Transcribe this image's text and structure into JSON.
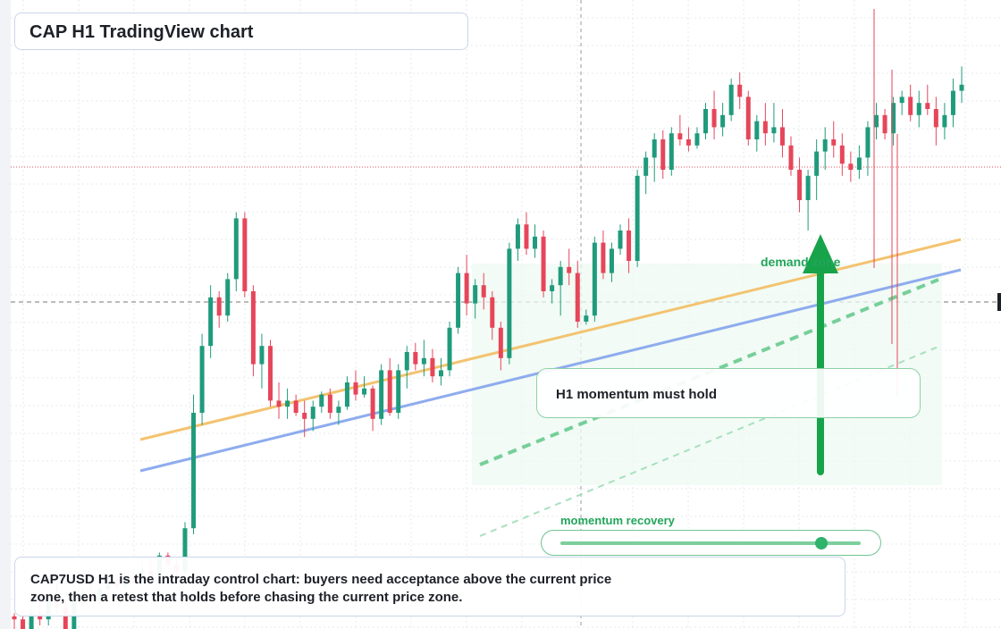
{
  "header": {
    "title": "CAP H1 TradingView chart"
  },
  "annotations": {
    "callout_text": "H1 momentum must hold",
    "demand_zone_label": "demand zone",
    "momentum_label": "momentum recovery",
    "momentum_level": 0.87,
    "description": "CAP7USD H1 is the intraday control chart: buyers need acceptance above the current price zone, then a retest that holds before chasing the current price zone."
  },
  "chart_data": {
    "type": "candlestick",
    "symbol": "CAP7USD",
    "timeframe": "H1",
    "title": "CAP H1 TradingView chart",
    "xlabel": "",
    "ylabel": "",
    "ylim": [
      0,
      100
    ],
    "grid": true,
    "candles": [
      [
        1.5,
        2.0,
        -1.0,
        1.0
      ],
      [
        1.0,
        2.5,
        -3.0,
        -2.0
      ],
      [
        -2.0,
        3.0,
        -3.0,
        2.0
      ],
      [
        2.0,
        3.5,
        0.0,
        1.0
      ],
      [
        1.0,
        5.0,
        0.0,
        4.0
      ],
      [
        4.0,
        7.0,
        2.0,
        3.0
      ],
      [
        3.0,
        4.0,
        -3.0,
        -1.0
      ],
      [
        -1.0,
        5.0,
        -1.5,
        4.0
      ],
      [
        4.0,
        6.0,
        3.0,
        5.0
      ],
      [
        5.0,
        6.5,
        4.0,
        4.0
      ],
      [
        4.0,
        7.0,
        3.5,
        6.0
      ],
      [
        6.0,
        8.0,
        5.0,
        7.0
      ],
      [
        7.0,
        8.5,
        6.0,
        6.5
      ],
      [
        6.5,
        9.0,
        6.0,
        8.0
      ],
      [
        8.0,
        9.5,
        6.5,
        7.0
      ],
      [
        7.0,
        10.5,
        6.5,
        9.0
      ],
      [
        9.0,
        11.0,
        7.0,
        8.0
      ],
      [
        8.0,
        12.0,
        7.5,
        11.5
      ],
      [
        11.5,
        12.0,
        9.5,
        10.0
      ],
      [
        10.0,
        11.0,
        8.0,
        9.0
      ],
      [
        9.0,
        17.0,
        8.5,
        16.0
      ],
      [
        16.0,
        38.0,
        15.0,
        35.0
      ],
      [
        35.0,
        48.0,
        33.0,
        46.0
      ],
      [
        46.0,
        56.0,
        44.0,
        54.0
      ],
      [
        54.0,
        55.0,
        49.0,
        51.0
      ],
      [
        51.0,
        58.0,
        50.0,
        57.0
      ],
      [
        57.0,
        68.0,
        55.0,
        67.0
      ],
      [
        67.0,
        68.0,
        54.0,
        55.0
      ],
      [
        55.0,
        56.0,
        41.0,
        43.0
      ],
      [
        43.0,
        48.0,
        39.0,
        46.0
      ],
      [
        46.0,
        47.0,
        36.0,
        37.0
      ],
      [
        37.0,
        40.0,
        34.0,
        36.0
      ],
      [
        36.0,
        39.0,
        34.0,
        37.0
      ],
      [
        37.0,
        38.0,
        34.5,
        35.0
      ],
      [
        35.0,
        37.0,
        31.0,
        34.0
      ],
      [
        34.0,
        37.0,
        32.0,
        36.0
      ],
      [
        36.0,
        38.5,
        35.0,
        38.0
      ],
      [
        38.0,
        39.0,
        34.0,
        35.0
      ],
      [
        35.0,
        37.0,
        33.0,
        36.0
      ],
      [
        36.0,
        41.0,
        35.5,
        40.0
      ],
      [
        40.0,
        42.0,
        37.0,
        38.0
      ],
      [
        38.0,
        41.0,
        37.5,
        39.0
      ],
      [
        39.0,
        39.5,
        32.0,
        34.0
      ],
      [
        34.0,
        43.0,
        33.0,
        42.0
      ],
      [
        42.0,
        44.0,
        34.5,
        35.0
      ],
      [
        35.0,
        43.0,
        34.0,
        42.0
      ],
      [
        42.0,
        46.0,
        39.0,
        45.0
      ],
      [
        45.0,
        46.5,
        42.0,
        43.0
      ],
      [
        43.0,
        47.0,
        41.0,
        44.0
      ],
      [
        44.0,
        45.5,
        40.0,
        41.0
      ],
      [
        41.0,
        44.0,
        39.5,
        42.0
      ],
      [
        42.0,
        50.0,
        41.0,
        49.0
      ],
      [
        49.0,
        59.0,
        48.0,
        58.0
      ],
      [
        58.0,
        61.0,
        51.0,
        53.0
      ],
      [
        53.0,
        57.0,
        50.5,
        56.0
      ],
      [
        56.0,
        58.0,
        52.0,
        54.0
      ],
      [
        54.0,
        55.0,
        47.0,
        49.0
      ],
      [
        49.0,
        50.0,
        42.0,
        44.0
      ],
      [
        44.0,
        63.0,
        43.0,
        62.0
      ],
      [
        62.0,
        67.0,
        60.0,
        66.0
      ],
      [
        66.0,
        68.0,
        61.0,
        62.0
      ],
      [
        62.0,
        66.0,
        60.5,
        64.0
      ],
      [
        64.0,
        65.0,
        54.0,
        55.0
      ],
      [
        55.0,
        57.0,
        53.0,
        56.0
      ],
      [
        56.0,
        60.0,
        51.0,
        59.0
      ],
      [
        59.0,
        62.0,
        56.0,
        58.0
      ],
      [
        58.0,
        60.0,
        49.0,
        50.0
      ],
      [
        50.0,
        52.0,
        49.5,
        51.0
      ],
      [
        51.0,
        64.0,
        50.0,
        63.0
      ],
      [
        63.0,
        65.0,
        57.0,
        58.0
      ],
      [
        58.0,
        63.0,
        56.5,
        62.0
      ],
      [
        62.0,
        66.0,
        61.0,
        65.0
      ],
      [
        65.0,
        67.0,
        58.0,
        60.0
      ],
      [
        60.0,
        75.0,
        59.0,
        74.0
      ],
      [
        74.0,
        78.0,
        71.0,
        77.0
      ],
      [
        77.0,
        81.0,
        73.0,
        80.0
      ],
      [
        80.0,
        81.5,
        73.5,
        75.0
      ],
      [
        75.0,
        82.0,
        74.0,
        81.0
      ],
      [
        81.0,
        84.0,
        79.0,
        80.0
      ],
      [
        80.0,
        82.0,
        78.0,
        79.0
      ],
      [
        79.0,
        82.0,
        78.5,
        81.0
      ],
      [
        81.0,
        86.0,
        80.0,
        85.0
      ],
      [
        85.0,
        88.0,
        80.0,
        82.0
      ],
      [
        82.0,
        86.0,
        80.5,
        84.0
      ],
      [
        84.0,
        90.0,
        83.0,
        89.0
      ],
      [
        89.0,
        91.0,
        85.0,
        87.0
      ],
      [
        87.0,
        88.0,
        79.0,
        80.0
      ],
      [
        80.0,
        84.0,
        78.0,
        83.0
      ],
      [
        83.0,
        86.0,
        79.0,
        81.0
      ],
      [
        81.0,
        86.0,
        79.5,
        82.0
      ],
      [
        82.0,
        85.0,
        77.0,
        79.0
      ],
      [
        79.0,
        80.5,
        74.0,
        75.0
      ],
      [
        75.0,
        77.0,
        68.0,
        70.0
      ],
      [
        70.0,
        75.0,
        65.0,
        74.0
      ],
      [
        74.0,
        80.0,
        70.0,
        78.0
      ],
      [
        78.0,
        82.0,
        75.0,
        80.0
      ],
      [
        80.0,
        83.0,
        77.0,
        79.0
      ],
      [
        79.0,
        81.0,
        74.0,
        76.0
      ],
      [
        76.0,
        78.0,
        73.0,
        75.0
      ],
      [
        75.0,
        79.0,
        73.5,
        77.0
      ],
      [
        77.0,
        83.0,
        74.0,
        82.0
      ],
      [
        82.0,
        86.0,
        80.0,
        84.0
      ],
      [
        84.0,
        85.0,
        80.0,
        81.0
      ],
      [
        81.0,
        87.0,
        79.0,
        86.0
      ],
      [
        86.0,
        88.0,
        84.0,
        87.0
      ],
      [
        87.0,
        89.0,
        83.0,
        84.0
      ],
      [
        84.0,
        88.0,
        82.0,
        86.0
      ],
      [
        86.0,
        89.0,
        84.0,
        85.0
      ],
      [
        85.0,
        87.0,
        79.0,
        82.0
      ],
      [
        82.0,
        86.0,
        80.0,
        84.0
      ],
      [
        84.0,
        90.0,
        82.0,
        88.0
      ],
      [
        88.0,
        92.0,
        86.0,
        89.0
      ]
    ]
  }
}
